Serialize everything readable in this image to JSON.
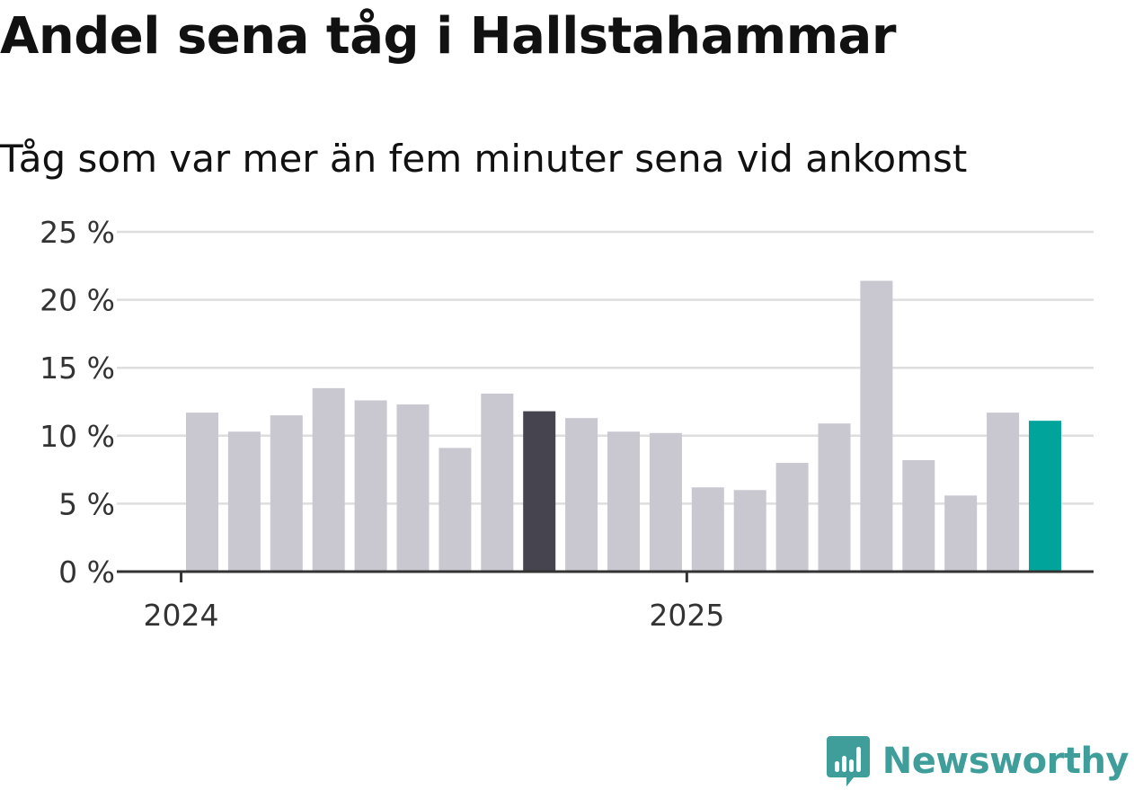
{
  "header": {
    "title": "Andel sena tåg i Hallstahammar",
    "subtitle": "Tåg som var mer än fem minuter sena vid ankomst"
  },
  "brand": {
    "logo_text": "Newsworthy",
    "logo_icon": "bar-chart-speech-bubble-icon",
    "color": "#3f9e9a"
  },
  "colors": {
    "bar_default": "#c9c8d1",
    "bar_highlight_dark": "#45444f",
    "bar_highlight_current": "#00a49a",
    "gridline": "#dedede",
    "axis": "#333333"
  },
  "chart_data": {
    "type": "bar",
    "title": "Andel sena tåg i Hallstahammar",
    "subtitle": "Tåg som var mer än fem minuter sena vid ankomst",
    "xlabel": "",
    "ylabel": "",
    "ylim": [
      0,
      25
    ],
    "yticks": [
      0,
      5,
      10,
      15,
      20,
      25
    ],
    "ytick_labels": [
      "0 %",
      "5 %",
      "10 %",
      "15 %",
      "20 %",
      "25 %"
    ],
    "unit": "%",
    "xtick_labels": [
      "2024",
      "2025"
    ],
    "xtick_positions": [
      -0.5,
      11.5
    ],
    "grid": true,
    "legend": "none",
    "values": [
      11.7,
      10.3,
      11.5,
      13.5,
      12.6,
      12.3,
      9.1,
      13.1,
      11.8,
      11.3,
      10.3,
      10.2,
      6.2,
      6.0,
      8.0,
      10.9,
      21.4,
      8.2,
      5.6,
      11.7,
      11.1
    ],
    "highlights": {
      "8": "bar_highlight_dark",
      "20": "bar_highlight_current"
    }
  }
}
